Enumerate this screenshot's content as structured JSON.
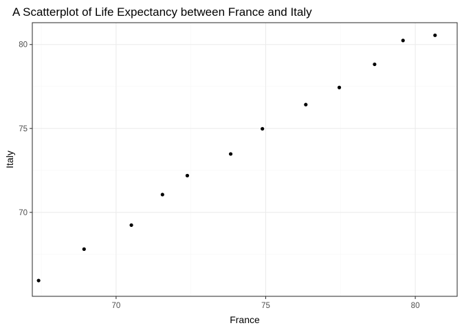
{
  "chart_data": {
    "type": "scatter",
    "title": "A Scatterplot of Life Expectancy between France and Italy",
    "xlabel": "France",
    "ylabel": "Italy",
    "xlim": [
      67.2,
      81.4
    ],
    "ylim": [
      65.0,
      81.3
    ],
    "x_ticks": [
      70,
      75,
      80
    ],
    "y_ticks": [
      70,
      75,
      80
    ],
    "x_tick_labels": [
      "70",
      "75",
      "80"
    ],
    "y_tick_labels": [
      "70",
      "75",
      "80"
    ],
    "grid": true,
    "point_color": "#000000",
    "points": [
      {
        "x": 67.41,
        "y": 65.94
      },
      {
        "x": 68.93,
        "y": 67.81
      },
      {
        "x": 70.51,
        "y": 69.24
      },
      {
        "x": 71.55,
        "y": 71.06
      },
      {
        "x": 72.38,
        "y": 72.19
      },
      {
        "x": 73.83,
        "y": 73.48
      },
      {
        "x": 74.89,
        "y": 74.98
      },
      {
        "x": 76.34,
        "y": 76.42
      },
      {
        "x": 77.46,
        "y": 77.44
      },
      {
        "x": 78.64,
        "y": 78.82
      },
      {
        "x": 79.59,
        "y": 80.24
      },
      {
        "x": 80.66,
        "y": 80.55
      }
    ]
  }
}
